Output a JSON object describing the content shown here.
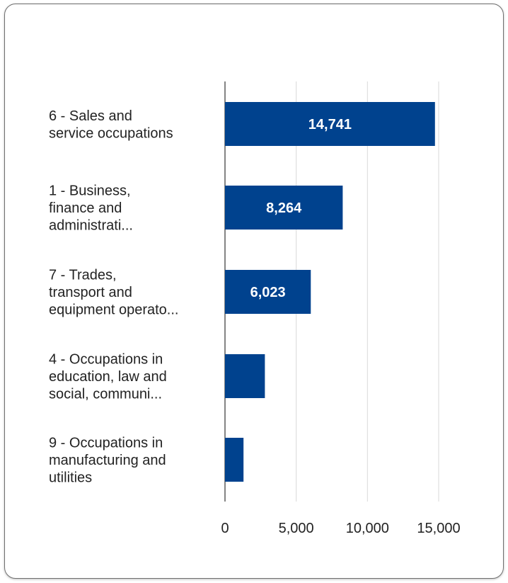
{
  "chart_data": {
    "type": "bar",
    "orientation": "horizontal",
    "categories": [
      [
        "6 - Sales and",
        "service occupations"
      ],
      [
        "1 - Business,",
        "finance and",
        "administrati..."
      ],
      [
        "7 - Trades,",
        "transport and",
        "equipment operato..."
      ],
      [
        "4 - Occupations in",
        "education, law and",
        "social, communi..."
      ],
      [
        "9 - Occupations in",
        "manufacturing and",
        "utilities"
      ]
    ],
    "values": [
      14741,
      8264,
      6023,
      2800,
      1300
    ],
    "data_labels": [
      "14,741",
      "8,264",
      "6,023",
      "",
      ""
    ],
    "xlim": [
      0,
      15000
    ],
    "x_ticks": [
      0,
      5000,
      10000,
      15000
    ],
    "x_tick_labels": [
      "0",
      "5,000",
      "10,000",
      "15,000"
    ],
    "grid": true,
    "legend": "none",
    "colors": {
      "bar": "#00428e",
      "grid": "#d9d9d9",
      "axis": "#333333",
      "data_label": "#ffffff"
    }
  }
}
